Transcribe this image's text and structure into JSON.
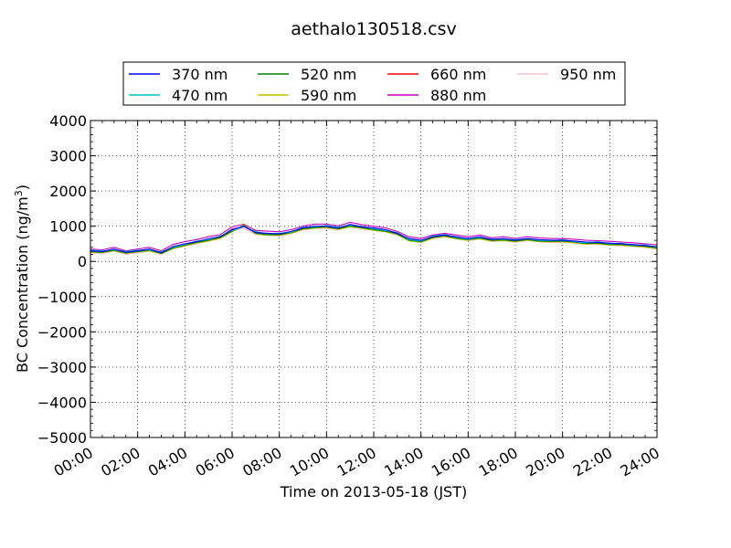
{
  "chart_data": {
    "type": "line",
    "title": "aethalo130518.csv",
    "xlabel": "Time on 2013-05-18 (JST)",
    "ylabel_main": "BC Concentration (ng/m",
    "ylabel_sup": "3",
    "ylabel_end": ")",
    "xlim": [
      "00:00",
      "24:00"
    ],
    "ylim": [
      -5000,
      4000
    ],
    "x_ticks": [
      "00:00",
      "02:00",
      "04:00",
      "06:00",
      "08:00",
      "10:00",
      "12:00",
      "14:00",
      "16:00",
      "18:00",
      "20:00",
      "22:00",
      "24:00"
    ],
    "y_ticks": [
      4000,
      3000,
      2000,
      1000,
      0,
      -1000,
      -2000,
      -3000,
      -4000,
      -5000
    ],
    "grid": true,
    "legend_position": "top-center",
    "x_times_hours": [
      0.0,
      0.5,
      1.0,
      1.5,
      2.0,
      2.5,
      3.0,
      3.5,
      4.0,
      4.5,
      5.0,
      5.5,
      6.0,
      6.5,
      7.0,
      7.5,
      8.0,
      8.5,
      9.0,
      9.5,
      10.0,
      10.5,
      11.0,
      11.5,
      12.0,
      12.5,
      13.0,
      13.5,
      14.0,
      14.5,
      15.0,
      15.5,
      16.0,
      16.5,
      17.0,
      17.5,
      18.0,
      18.5,
      19.0,
      19.5,
      20.0,
      20.5,
      21.0,
      21.5,
      22.0,
      22.5,
      23.0,
      23.5,
      24.0
    ],
    "series": [
      {
        "name": "370 nm",
        "color": "#0000ff",
        "values": [
          300,
          280,
          350,
          260,
          300,
          350,
          250,
          420,
          500,
          560,
          640,
          700,
          900,
          1000,
          820,
          800,
          780,
          850,
          950,
          1000,
          1000,
          950,
          1050,
          980,
          950,
          900,
          800,
          650,
          600,
          700,
          750,
          700,
          650,
          700,
          620,
          650,
          600,
          650,
          620,
          600,
          600,
          580,
          550,
          540,
          520,
          500,
          480,
          450,
          420
        ]
      },
      {
        "name": "470 nm",
        "color": "#00bfbf",
        "values": [
          320,
          300,
          330,
          280,
          320,
          330,
          270,
          400,
          480,
          580,
          620,
          720,
          880,
          980,
          850,
          780,
          800,
          830,
          970,
          980,
          1020,
          970,
          1030,
          1000,
          930,
          880,
          820,
          620,
          580,
          720,
          770,
          680,
          630,
          680,
          640,
          630,
          620,
          640,
          600,
          590,
          620,
          560,
          530,
          560,
          500,
          520,
          460,
          470,
          400
        ]
      },
      {
        "name": "520 nm",
        "color": "#008000",
        "values": [
          280,
          260,
          320,
          240,
          280,
          320,
          230,
          380,
          460,
          540,
          600,
          680,
          860,
          1020,
          800,
          760,
          760,
          820,
          930,
          960,
          980,
          930,
          1000,
          960,
          900,
          860,
          780,
          600,
          560,
          680,
          730,
          660,
          620,
          660,
          600,
          610,
          580,
          620,
          580,
          570,
          580,
          550,
          510,
          520,
          480,
          480,
          450,
          430,
          380
        ]
      },
      {
        "name": "590 nm",
        "color": "#bfbf00",
        "values": [
          260,
          250,
          300,
          230,
          270,
          300,
          220,
          360,
          440,
          520,
          580,
          660,
          840,
          1040,
          780,
          740,
          740,
          800,
          910,
          940,
          960,
          910,
          980,
          940,
          880,
          840,
          760,
          580,
          540,
          660,
          710,
          640,
          600,
          640,
          580,
          590,
          560,
          600,
          560,
          550,
          560,
          530,
          490,
          500,
          460,
          460,
          430,
          410,
          360
        ]
      },
      {
        "name": "660 nm",
        "color": "#ff0000",
        "values": [
          290,
          270,
          340,
          250,
          290,
          340,
          240,
          410,
          490,
          550,
          630,
          690,
          920,
          990,
          810,
          790,
          770,
          840,
          940,
          990,
          990,
          940,
          1040,
          970,
          940,
          890,
          790,
          640,
          590,
          690,
          740,
          690,
          640,
          690,
          610,
          640,
          590,
          640,
          610,
          590,
          590,
          570,
          540,
          530,
          510,
          490,
          470,
          440,
          410
        ]
      },
      {
        "name": "880 nm",
        "color": "#bf00bf",
        "values": [
          350,
          330,
          400,
          300,
          350,
          400,
          300,
          480,
          560,
          620,
          700,
          760,
          980,
          1060,
          880,
          860,
          840,
          900,
          1000,
          1060,
          1060,
          1010,
          1110,
          1040,
          1000,
          950,
          850,
          700,
          650,
          750,
          800,
          750,
          700,
          750,
          670,
          700,
          650,
          700,
          670,
          650,
          650,
          630,
          600,
          590,
          570,
          550,
          530,
          500,
          470
        ]
      },
      {
        "name": "950 nm",
        "color": "#ffc0cb",
        "values": [
          240,
          220,
          290,
          200,
          240,
          290,
          190,
          360,
          440,
          500,
          580,
          640,
          860,
          940,
          760,
          740,
          720,
          790,
          890,
          940,
          940,
          890,
          990,
          920,
          890,
          840,
          740,
          590,
          540,
          640,
          690,
          640,
          590,
          640,
          560,
          590,
          540,
          590,
          560,
          540,
          540,
          520,
          490,
          480,
          460,
          440,
          420,
          390,
          360
        ]
      }
    ]
  }
}
